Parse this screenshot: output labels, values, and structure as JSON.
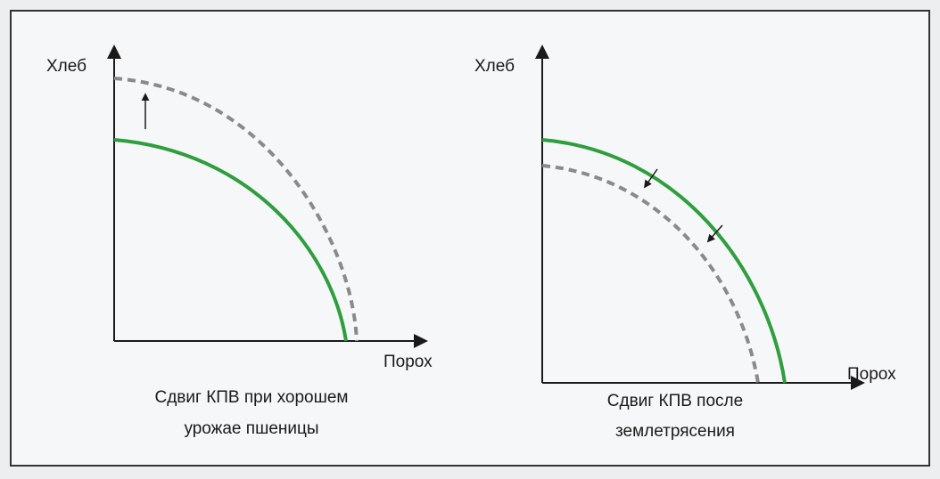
{
  "diagrams": [
    {
      "y_label": "Хлеб",
      "x_label": "Порох",
      "caption": [
        "Сдвиг КПВ при хорошем",
        "урожае пшеницы"
      ]
    },
    {
      "y_label": "Хлеб",
      "x_label": "Порох",
      "caption": [
        "Сдвиг КПВ после",
        "землетрясения"
      ]
    }
  ]
}
